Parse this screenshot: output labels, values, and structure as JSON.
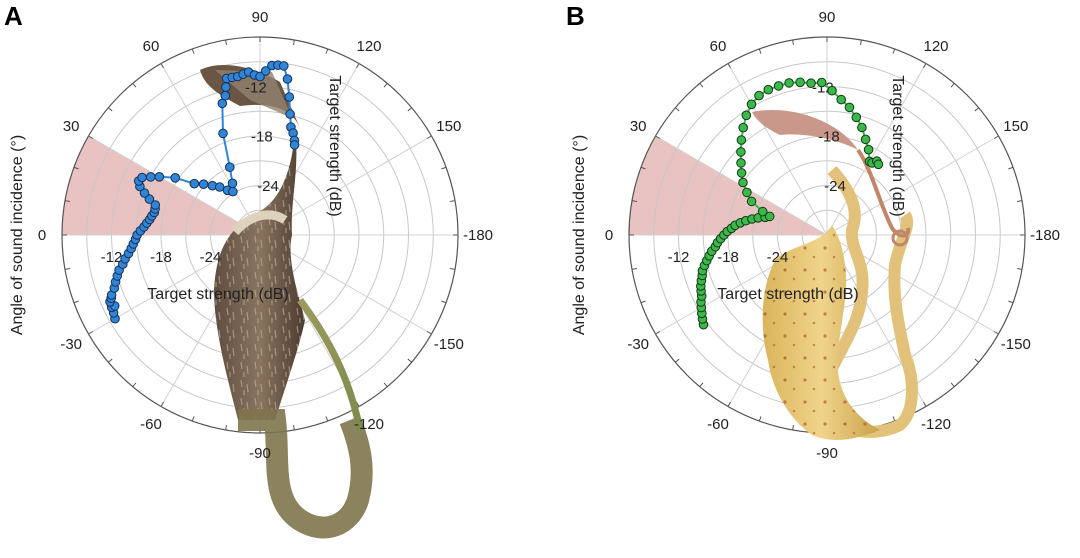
{
  "chart_data": [
    {
      "type": "scatter",
      "panel": "A",
      "projection": "polar",
      "theta_unit": "degrees",
      "angle_ticks": [
        90,
        120,
        150,
        -180,
        -150,
        -120,
        -90,
        -60,
        -30,
        0,
        30,
        60
      ],
      "radial_ticks": [
        -24,
        -18,
        -12
      ],
      "radial_range": [
        -30,
        -6
      ],
      "xlabel": "Target strength (dB)",
      "ylabel": "Angle of sound incidence (°)",
      "radial_label_upper": "Target strength (dB)",
      "highlight_sector": {
        "from": 0,
        "to": 30,
        "color": "#e9c3c1"
      },
      "grid": true,
      "marker_color": "#2f86d6",
      "marker_edge": "#1a2f57",
      "background_image": "pitcher-plant-brown",
      "series": [
        {
          "theta": [
            -30,
            -28,
            -26,
            -26,
            -24,
            -23,
            -22,
            -20,
            -18,
            -16,
            -14,
            -12,
            -10,
            -8,
            -6,
            -4,
            -2,
            0,
            2,
            4,
            6,
            8,
            10,
            12,
            14,
            16,
            18,
            20,
            22,
            24,
            26,
            28,
            30,
            34,
            38,
            42,
            46,
            50,
            54,
            58,
            62,
            66,
            70,
            74,
            76,
            77,
            78,
            80,
            82,
            84,
            86,
            88,
            90,
            92,
            94,
            96,
            98,
            100,
            102,
            104,
            106,
            108,
            110,
            111
          ],
          "r": [
            -9.7,
            -9.9,
            -10.0,
            -10.4,
            -10.1,
            -10.4,
            -10.6,
            -11.2,
            -11.6,
            -12.0,
            -12.4,
            -13.0,
            -13.4,
            -13.9,
            -14.3,
            -14.6,
            -14.9,
            -15.1,
            -15.5,
            -15.9,
            -16.2,
            -16.5,
            -16.7,
            -16.9,
            -16.9,
            -16.8,
            -15.9,
            -15.1,
            -14.3,
            -13.9,
            -14.1,
            -15.0,
            -15.9,
            -17.6,
            -19.9,
            -20.8,
            -21.7,
            -22.4,
            -23.3,
            -23.8,
            -22.9,
            -21.0,
            -16.9,
            -13.4,
            -12.6,
            -11.6,
            -10.6,
            -10.6,
            -10.6,
            -10.4,
            -10.2,
            -10.6,
            -10.8,
            -10.1,
            -9.4,
            -9.3,
            -9.3,
            -10.8,
            -12.9,
            -14.9,
            -16.4,
            -17.0,
            -17.8,
            -18.3
          ]
        }
      ]
    },
    {
      "type": "scatter",
      "panel": "B",
      "projection": "polar",
      "theta_unit": "degrees",
      "angle_ticks": [
        90,
        120,
        150,
        -180,
        -150,
        -120,
        -90,
        -60,
        -30,
        0,
        30,
        60
      ],
      "radial_ticks": [
        -24,
        -18,
        -12
      ],
      "radial_range": [
        -30,
        -6
      ],
      "xlabel": "Target strength (dB)",
      "ylabel": "Angle of sound incidence (°)",
      "radial_label_upper": "Target strength (dB)",
      "highlight_sector": {
        "from": 0,
        "to": 30,
        "color": "#e9c3c1"
      },
      "grid": true,
      "marker_color": "#3cb84a",
      "marker_edge": "#143a18",
      "background_image": "pitcher-plant-yellow",
      "series": [
        {
          "theta": [
            -36,
            -34,
            -32,
            -30,
            -28,
            -26,
            -24,
            -22,
            -20,
            -18,
            -16,
            -14,
            -12,
            -10,
            -8,
            -6,
            -4,
            -2,
            0,
            2,
            4,
            6,
            8,
            10,
            12,
            14,
            16,
            18,
            20,
            24,
            28,
            32,
            36,
            40,
            44,
            48,
            52,
            56,
            60,
            64,
            68,
            72,
            76,
            80,
            84,
            88,
            92,
            96,
            100,
            104,
            108,
            112,
            116,
            120,
            122,
            124,
            126
          ],
          "r": [
            -11.5,
            -11.8,
            -12.1,
            -12.4,
            -12.7,
            -13.1,
            -13.3,
            -13.5,
            -13.8,
            -14.1,
            -14.3,
            -14.7,
            -15.1,
            -15.5,
            -15.9,
            -16.4,
            -16.7,
            -17.1,
            -17.5,
            -17.9,
            -18.4,
            -18.8,
            -19.4,
            -20.0,
            -20.7,
            -21.4,
            -22.2,
            -22.7,
            -21.7,
            -20.0,
            -19.0,
            -18.0,
            -17.2,
            -16.4,
            -15.5,
            -14.5,
            -13.5,
            -12.5,
            -11.7,
            -11.2,
            -11.0,
            -11.0,
            -11.0,
            -11.2,
            -11.5,
            -11.5,
            -12.5,
            -13.5,
            -14.3,
            -15.3,
            -16.3,
            -17.5,
            -18.5,
            -19.7,
            -19.7,
            -19.2,
            -19.4
          ]
        }
      ]
    }
  ]
}
